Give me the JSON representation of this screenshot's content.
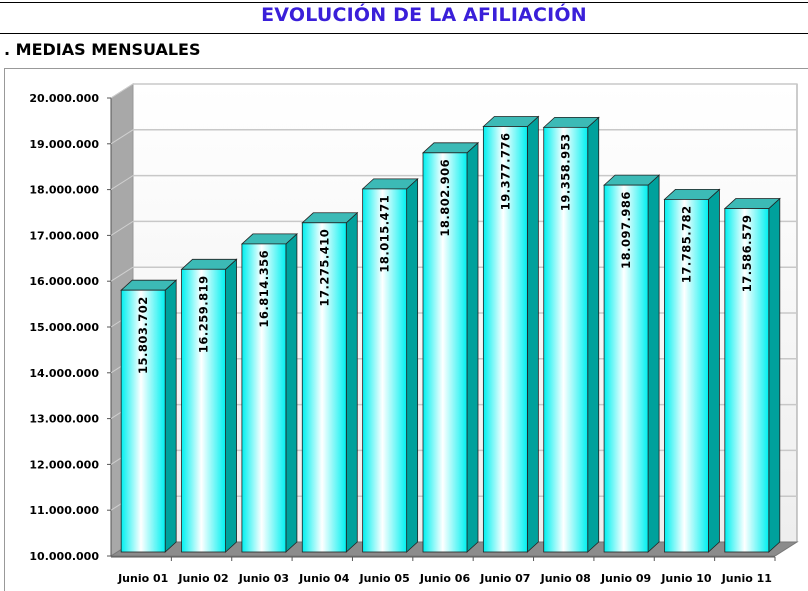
{
  "header": {
    "title": "EVOLUCIÓN DE LA AFILIACIÓN",
    "subtitle": ". MEDIAS MENSUALES"
  },
  "chart_data": {
    "type": "bar",
    "title": "",
    "xlabel": "",
    "ylabel": "",
    "ylim": [
      10000000,
      20000000
    ],
    "yticks": [
      10000000,
      11000000,
      12000000,
      13000000,
      14000000,
      15000000,
      16000000,
      17000000,
      18000000,
      19000000,
      20000000
    ],
    "ytick_labels": [
      "10.000.000",
      "11.000.000",
      "12.000.000",
      "13.000.000",
      "14.000.000",
      "15.000.000",
      "16.000.000",
      "17.000.000",
      "18.000.000",
      "19.000.000",
      "20.000.000"
    ],
    "categories": [
      "Junio 01",
      "Junio 02",
      "Junio 03",
      "Junio 04",
      "Junio 05",
      "Junio 06",
      "Junio 07",
      "Junio 08",
      "Junio 09",
      "Junio 10",
      "Junio 11"
    ],
    "values": [
      15803702,
      16259819,
      16814356,
      17275410,
      18015471,
      18802906,
      19377776,
      19358953,
      18097986,
      17785782,
      17586579
    ],
    "data_labels": [
      "15.803.702",
      "16.259.819",
      "16.814.356",
      "17.275.410",
      "18.015.471",
      "18.802.906",
      "19.377.776",
      "19.358.953",
      "18.097.986",
      "17.785.782",
      "17.586.579"
    ],
    "grid": true,
    "style": "3d-cylinder-like",
    "colors": {
      "bar_light": "#ffffff",
      "bar_mid": "#00ffff",
      "bar_side": "#009e9a",
      "bar_top": "#3bbcb8",
      "wall": "#ffffff",
      "wall_side": "#a0a0a0",
      "grid": "#c8c8c8"
    }
  }
}
